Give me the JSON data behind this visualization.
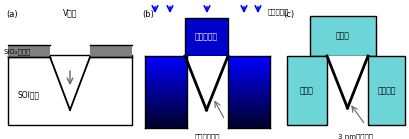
{
  "bg_color": "#ffffff",
  "panel_a_label": "(a)",
  "panel_b_label": "(b)",
  "panel_c_label": "(c)",
  "label_v_groove": "V型溝",
  "label_sio2": "SiO₂マスク",
  "label_soi": "SOI基板",
  "label_ion": "イオン注入",
  "label_gate_elec": "ゲート電極",
  "label_gate_ins": "ゲート絶縁膜",
  "label_gate": "ゲート",
  "label_source": "ソース",
  "label_drain": "ドレイン",
  "label_channel": "3 nmチャネル",
  "cyan_color": "#6dd5d8",
  "blue_dark": "#0000cc",
  "blue_light": "#aaaaff",
  "black": "#000000",
  "gray_dark": "#666666",
  "gray_mask": "#808080",
  "line_width": 1.0
}
